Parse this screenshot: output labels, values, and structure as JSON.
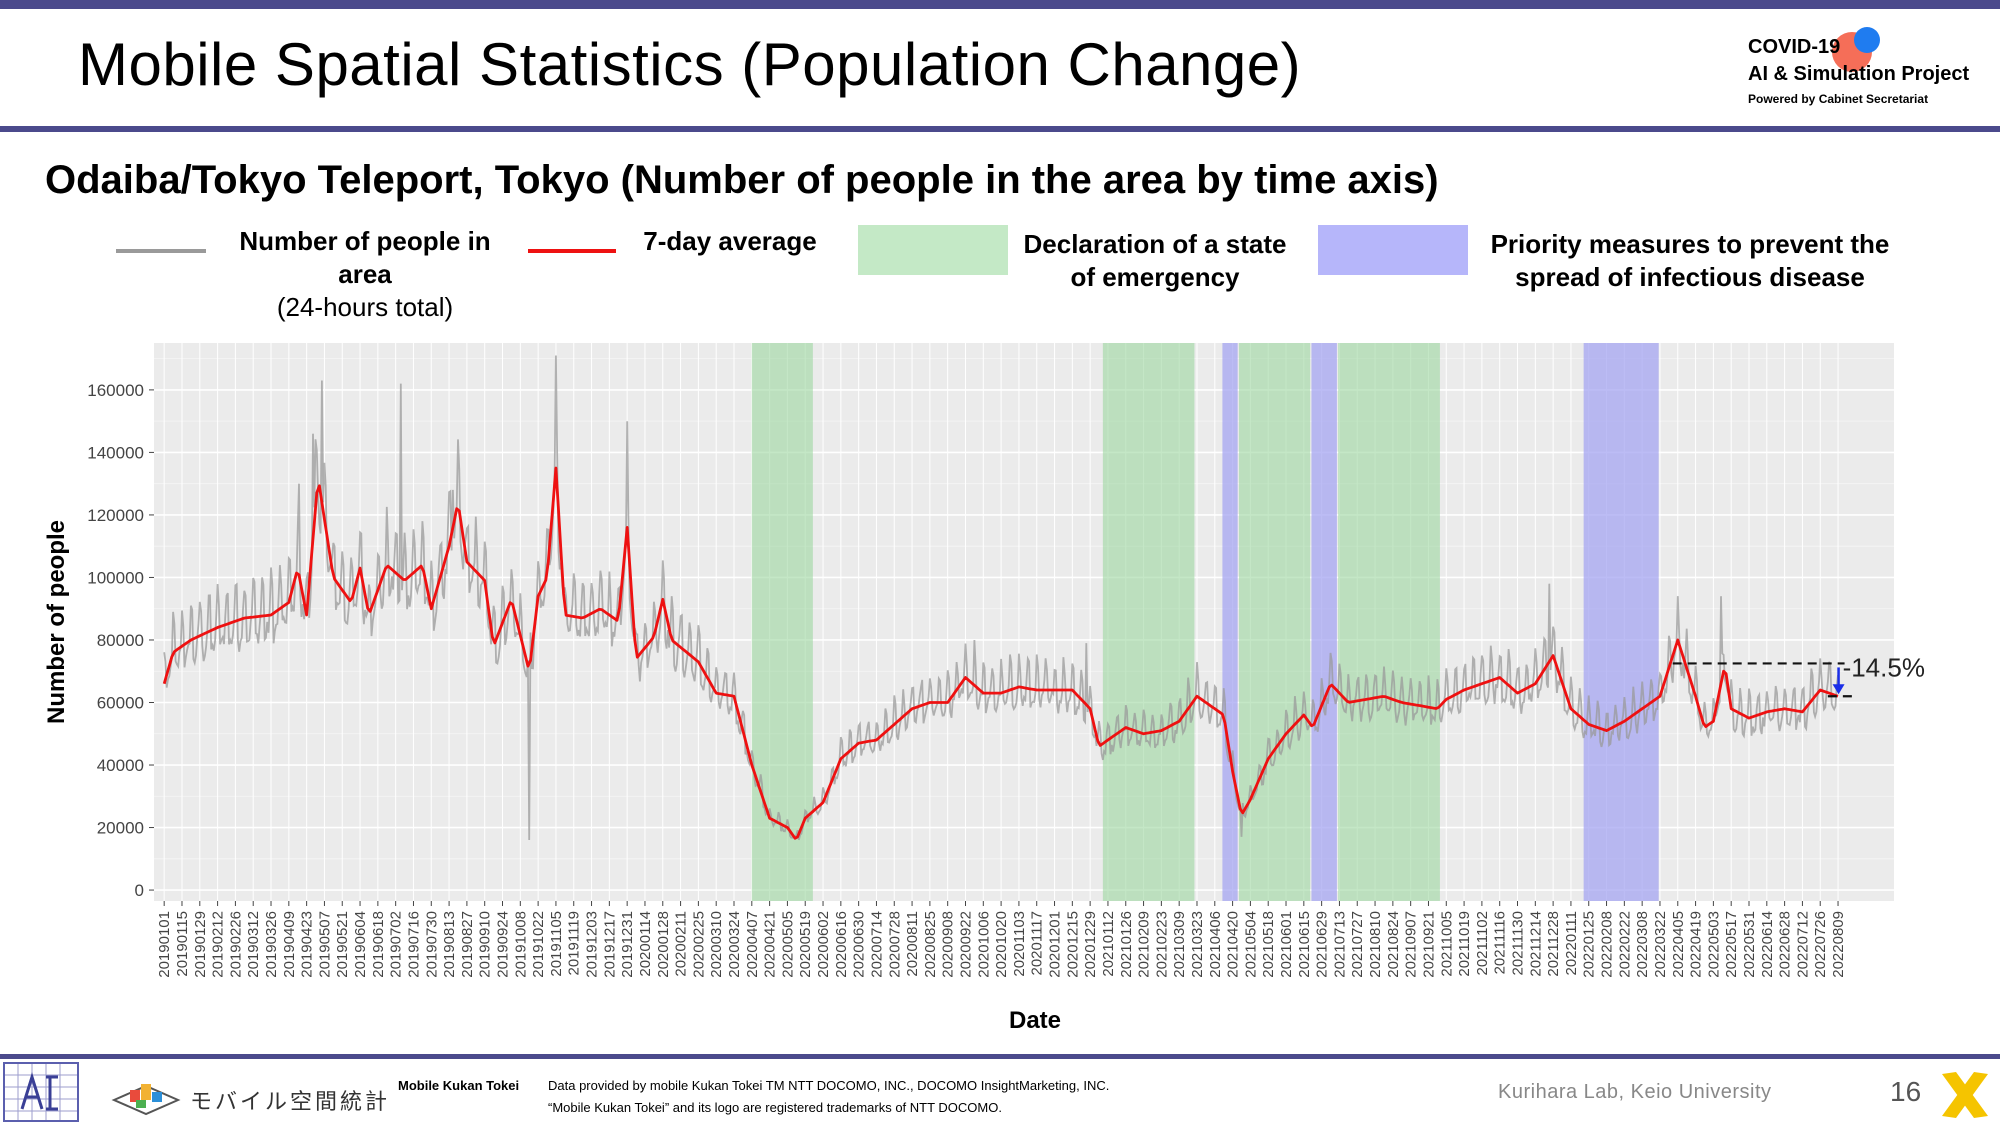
{
  "header": {
    "title": "Mobile Spatial Statistics (Population Change)",
    "logo": {
      "line1": "COVID-19",
      "line2": "AI & Simulation Project",
      "line3": "Powered by Cabinet Secretariat"
    }
  },
  "subtitle": "Odaiba/Tokyo Teleport, Tokyo (Number of people in the area by time axis)",
  "legend": {
    "raw_label": "Number of people in area",
    "raw_sub": "(24-hours total)",
    "avg_label": "7-day average",
    "emergency_label_1": "Declaration of a state",
    "emergency_label_2": "of emergency",
    "priority_label_1": "Priority measures to prevent the",
    "priority_label_2": "spread of infectious disease"
  },
  "chart_data": {
    "type": "line",
    "xlabel": "Date",
    "ylabel": "Number of people",
    "ylim": [
      0,
      175000
    ],
    "yticks": [
      0,
      20000,
      40000,
      60000,
      80000,
      100000,
      120000,
      140000,
      160000
    ],
    "grid": true,
    "x_start": "20190101",
    "x_end": "20220822",
    "xticks": [
      "20190101",
      "20190115",
      "20190129",
      "20190212",
      "20190226",
      "20190312",
      "20190326",
      "20190409",
      "20190423",
      "20190507",
      "20190521",
      "20190604",
      "20190618",
      "20190702",
      "20190716",
      "20190730",
      "20190813",
      "20190827",
      "20190910",
      "20190924",
      "20191008",
      "20191022",
      "20191105",
      "20191119",
      "20191203",
      "20191217",
      "20191231",
      "20200114",
      "20200128",
      "20200211",
      "20200225",
      "20200310",
      "20200324",
      "20200407",
      "20200421",
      "20200505",
      "20200519",
      "20200602",
      "20200616",
      "20200630",
      "20200714",
      "20200728",
      "20200811",
      "20200825",
      "20200908",
      "20200922",
      "20201006",
      "20201020",
      "20201103",
      "20201117",
      "20201201",
      "20201215",
      "20201229",
      "20210112",
      "20210126",
      "20210209",
      "20210223",
      "20210309",
      "20210323",
      "20210406",
      "20210420",
      "20210504",
      "20210518",
      "20210601",
      "20210615",
      "20210629",
      "20210713",
      "20210727",
      "20210810",
      "20210824",
      "20210907",
      "20210921",
      "20211005",
      "20211019",
      "20211102",
      "20211116",
      "20211130",
      "20211214",
      "20211228",
      "20220111",
      "20220125",
      "20220208",
      "20220222",
      "20220308",
      "20220322",
      "20220405",
      "20220419",
      "20220503",
      "20220517",
      "20220531",
      "20220614",
      "20220628",
      "20220712",
      "20220726",
      "20220809"
    ],
    "series": [
      {
        "name": "7-day average",
        "color": "#ee1111",
        "points": [
          [
            "20190101",
            66000
          ],
          [
            "20190108",
            76000
          ],
          [
            "20190122",
            80000
          ],
          [
            "20190212",
            84000
          ],
          [
            "20190305",
            87000
          ],
          [
            "20190326",
            88000
          ],
          [
            "20190409",
            92000
          ],
          [
            "20190416",
            103000
          ],
          [
            "20190423",
            88000
          ],
          [
            "20190502",
            132000
          ],
          [
            "20190514",
            100000
          ],
          [
            "20190528",
            92000
          ],
          [
            "20190604",
            103000
          ],
          [
            "20190611",
            88000
          ],
          [
            "20190625",
            104000
          ],
          [
            "20190709",
            99000
          ],
          [
            "20190723",
            104000
          ],
          [
            "20190730",
            90000
          ],
          [
            "20190813",
            110000
          ],
          [
            "20190820",
            124000
          ],
          [
            "20190827",
            105000
          ],
          [
            "20190910",
            99000
          ],
          [
            "20190917",
            78000
          ],
          [
            "20191001",
            93000
          ],
          [
            "20191015",
            70000
          ],
          [
            "20191022",
            94000
          ],
          [
            "20191029",
            100000
          ],
          [
            "20191105",
            135000
          ],
          [
            "20191112",
            88000
          ],
          [
            "20191126",
            87000
          ],
          [
            "20191210",
            90000
          ],
          [
            "20191224",
            86000
          ],
          [
            "20191231",
            116000
          ],
          [
            "20200107",
            74000
          ],
          [
            "20200121",
            81000
          ],
          [
            "20200128",
            93000
          ],
          [
            "20200204",
            80000
          ],
          [
            "20200225",
            73000
          ],
          [
            "20200310",
            63000
          ],
          [
            "20200324",
            62000
          ],
          [
            "20200407",
            40000
          ],
          [
            "20200421",
            23000
          ],
          [
            "20200505",
            20000
          ],
          [
            "20200512",
            16000
          ],
          [
            "20200519",
            23000
          ],
          [
            "20200602",
            28000
          ],
          [
            "20200616",
            42000
          ],
          [
            "20200630",
            47000
          ],
          [
            "20200714",
            48000
          ],
          [
            "20200728",
            53000
          ],
          [
            "20200811",
            58000
          ],
          [
            "20200825",
            60000
          ],
          [
            "20200908",
            60000
          ],
          [
            "20200922",
            68000
          ],
          [
            "20201006",
            63000
          ],
          [
            "20201020",
            63000
          ],
          [
            "20201103",
            65000
          ],
          [
            "20201117",
            64000
          ],
          [
            "20201201",
            64000
          ],
          [
            "20201215",
            64000
          ],
          [
            "20201229",
            58000
          ],
          [
            "20210105",
            46000
          ],
          [
            "20210126",
            52000
          ],
          [
            "20210209",
            50000
          ],
          [
            "20210223",
            51000
          ],
          [
            "20210309",
            54000
          ],
          [
            "20210323",
            62000
          ],
          [
            "20210406",
            58000
          ],
          [
            "20210413",
            56000
          ],
          [
            "20210420",
            38000
          ],
          [
            "20210427",
            24000
          ],
          [
            "20210504",
            29000
          ],
          [
            "20210518",
            42000
          ],
          [
            "20210601",
            50000
          ],
          [
            "20210615",
            56000
          ],
          [
            "20210622",
            52000
          ],
          [
            "20210706",
            66000
          ],
          [
            "20210720",
            60000
          ],
          [
            "20210803",
            61000
          ],
          [
            "20210817",
            62000
          ],
          [
            "20210831",
            60000
          ],
          [
            "20210914",
            59000
          ],
          [
            "20210928",
            58000
          ],
          [
            "20211005",
            61000
          ],
          [
            "20211019",
            64000
          ],
          [
            "20211102",
            66000
          ],
          [
            "20211116",
            68000
          ],
          [
            "20211130",
            63000
          ],
          [
            "20211214",
            66000
          ],
          [
            "20211228",
            75000
          ],
          [
            "20220111",
            58000
          ],
          [
            "20220125",
            53000
          ],
          [
            "20220208",
            51000
          ],
          [
            "20220222",
            54000
          ],
          [
            "20220308",
            58000
          ],
          [
            "20220322",
            62000
          ],
          [
            "20220405",
            80000
          ],
          [
            "20220419",
            62000
          ],
          [
            "20220426",
            52000
          ],
          [
            "20220503",
            54000
          ],
          [
            "20220512",
            72000
          ],
          [
            "20220517",
            58000
          ],
          [
            "20220531",
            55000
          ],
          [
            "20220614",
            57000
          ],
          [
            "20220628",
            58000
          ],
          [
            "20220712",
            57000
          ],
          [
            "20220726",
            64000
          ],
          [
            "20220809",
            62000
          ]
        ]
      },
      {
        "name": "Number of people in area",
        "color": "#9a9a9a",
        "style": "daily values fluctuating around the 7-day average; notable peaks approx. 163000 (20190505), 162000 (20190706), 171000 (20191105), 150000 (20191231); low approx. 16000 (20191015)"
      }
    ],
    "shaded_periods": [
      {
        "type": "emergency",
        "color": "#9fd8a3",
        "start": "20200407",
        "end": "20200525"
      },
      {
        "type": "emergency",
        "color": "#9fd8a3",
        "start": "20210108",
        "end": "20210321"
      },
      {
        "type": "priority",
        "color": "#a6a6f2",
        "start": "20210412",
        "end": "20210424"
      },
      {
        "type": "emergency",
        "color": "#9fd8a3",
        "start": "20210425",
        "end": "20210620"
      },
      {
        "type": "priority",
        "color": "#a6a6f2",
        "start": "20210621",
        "end": "20210711"
      },
      {
        "type": "emergency",
        "color": "#9fd8a3",
        "start": "20210712",
        "end": "20210930"
      },
      {
        "type": "priority",
        "color": "#a6a6f2",
        "start": "20220121",
        "end": "20220321"
      }
    ],
    "annotation": {
      "text": "-14.5%",
      "from_value": 72500,
      "to_value": 62000,
      "from_date": "20220401",
      "to_date": "20220822"
    }
  },
  "footer": {
    "msk_jp": "モバイル空間統計",
    "msk_en": "Mobile Kukan Tokei",
    "credit_1": "Data provided by mobile Kukan Tokei TM NTT DOCOMO, INC., DOCOMO InsightMarketing, INC.",
    "credit_2": "“Mobile Kukan Tokei” and its logo are registered trademarks of NTT DOCOMO.",
    "lab": "Kurihara Lab, Keio University",
    "page": "16"
  },
  "colors": {
    "accent": "#4b4a8c",
    "emergency": "#9fd8a3",
    "priority": "#a6a6f2",
    "avg": "#ee1111",
    "raw": "#9a9a9a"
  }
}
